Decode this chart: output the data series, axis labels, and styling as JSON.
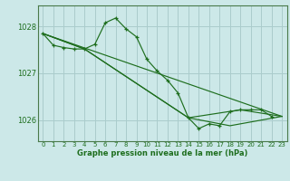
{
  "title": "Graphe pression niveau de la mer (hPa)",
  "bg_color": "#cce8e8",
  "grid_color": "#aacccc",
  "line_color": "#1e6e1e",
  "xlim": [
    -0.5,
    23.5
  ],
  "ylim": [
    1025.55,
    1028.45
  ],
  "yticks": [
    1026,
    1027,
    1028
  ],
  "xticks": [
    0,
    1,
    2,
    3,
    4,
    5,
    6,
    7,
    8,
    9,
    10,
    11,
    12,
    13,
    14,
    15,
    16,
    17,
    18,
    19,
    20,
    21,
    22,
    23
  ],
  "series1_x": [
    0,
    1,
    2,
    3,
    4,
    5,
    6,
    7,
    8,
    9,
    10,
    11,
    12,
    13,
    14,
    15,
    16,
    17,
    18,
    19,
    20,
    21,
    22
  ],
  "series1_y": [
    1027.85,
    1027.6,
    1027.55,
    1027.52,
    1027.52,
    1027.62,
    1028.08,
    1028.18,
    1027.95,
    1027.78,
    1027.3,
    1027.05,
    1026.85,
    1026.58,
    1026.05,
    1025.82,
    1025.92,
    1025.88,
    1026.18,
    1026.22,
    1026.22,
    1026.22,
    1026.08
  ],
  "line2_x": [
    0,
    23
  ],
  "line2_y": [
    1027.85,
    1026.08
  ],
  "line3_x": [
    0,
    4,
    14,
    19,
    23
  ],
  "line3_y": [
    1027.85,
    1027.52,
    1026.05,
    1026.22,
    1026.08
  ],
  "line4_x": [
    0,
    4,
    14,
    18,
    23
  ],
  "line4_y": [
    1027.85,
    1027.52,
    1026.05,
    1025.88,
    1026.08
  ]
}
